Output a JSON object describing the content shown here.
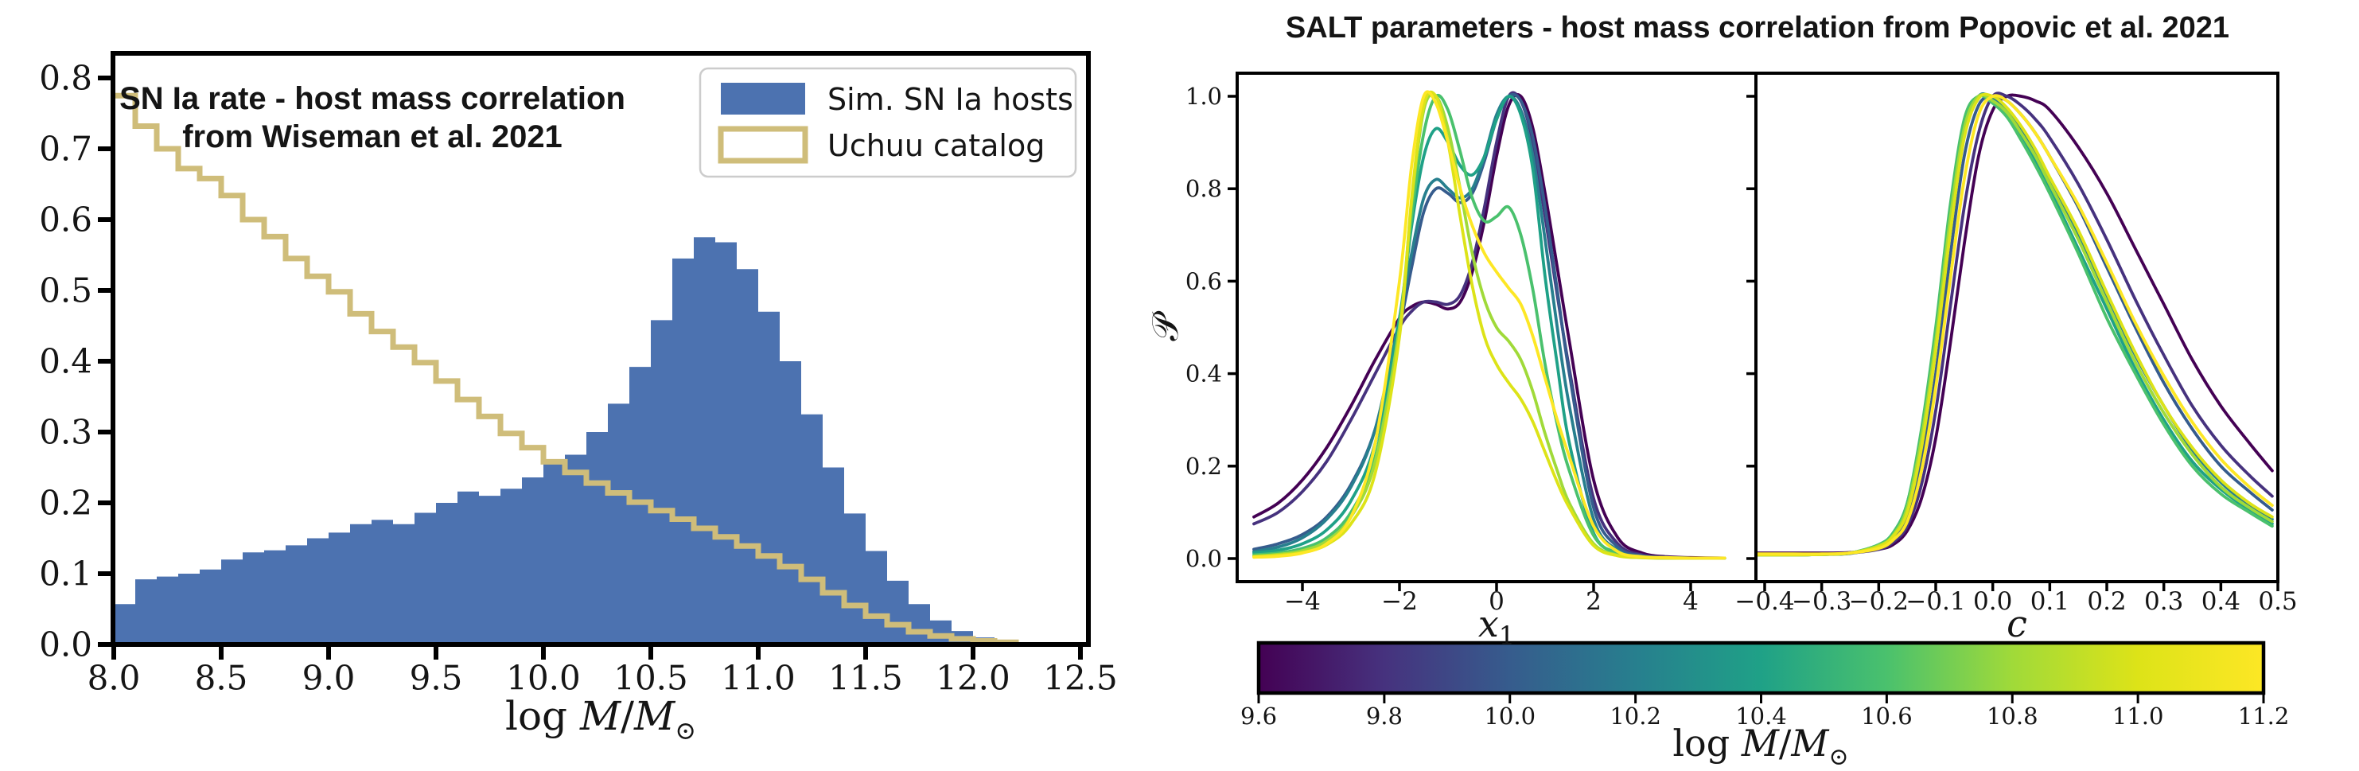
{
  "right_chart": {
    "title": "SALT parameters - host mass correlation from Popovic et al. 2021",
    "ylabel": "𝒫",
    "yticks": [
      0.0,
      0.2,
      0.4,
      0.6,
      0.8,
      1.0
    ],
    "ytick_labels": [
      "0.0",
      "0.2",
      "0.4",
      "0.6",
      "0.8",
      "1.0"
    ],
    "colorbar": {
      "min": 9.6,
      "max": 11.2,
      "ticks": [
        9.6,
        9.8,
        10.0,
        10.2,
        10.4,
        10.6,
        10.8,
        11.0,
        11.2
      ],
      "tick_labels": [
        "9.6",
        "9.8",
        "10.0",
        "10.2",
        "10.4",
        "10.6",
        "10.8",
        "11.0",
        "11.2"
      ],
      "label_prefix": "log",
      "label_m1": "M",
      "label_slash": "/",
      "label_m2": "M",
      "label_sun": "⊙",
      "stops": [
        "#440154",
        "#46327e",
        "#365c8d",
        "#277f8e",
        "#1fa187",
        "#4ac16d",
        "#a0da39",
        "#dde318",
        "#fde725"
      ]
    }
  },
  "chart_data": [
    {
      "id": "sn_rate_host_mass_hist",
      "type": "bar",
      "title_line1": "SN Ia rate - host mass correlation",
      "title_line2": "from Wiseman et al. 2021",
      "xlabel_prefix": "log",
      "xlabel_m1": "M",
      "xlabel_slash": "/",
      "xlabel_m2": "M",
      "xlabel_sun": "⊙",
      "xlim": [
        7.99,
        12.54
      ],
      "ylim": [
        0.0,
        0.83
      ],
      "bin_start": 8.0,
      "bin_width": 0.1,
      "xticks": [
        8.0,
        8.5,
        9.0,
        9.5,
        10.0,
        10.5,
        11.0,
        11.5,
        12.0,
        12.5
      ],
      "xtick_labels": [
        "8.0",
        "8.5",
        "9.0",
        "9.5",
        "10.0",
        "10.5",
        "11.0",
        "11.5",
        "12.0",
        "12.5"
      ],
      "yticks": [
        0.0,
        0.1,
        0.2,
        0.3,
        0.4,
        0.5,
        0.6,
        0.7,
        0.8
      ],
      "ytick_labels": [
        "0.0",
        "0.1",
        "0.2",
        "0.3",
        "0.4",
        "0.5",
        "0.6",
        "0.7",
        "0.8"
      ],
      "series": [
        {
          "name": "Sim. SN Ia hosts",
          "style": "filled",
          "color": "#4C72B0",
          "values": [
            0.057,
            0.092,
            0.096,
            0.1,
            0.106,
            0.12,
            0.13,
            0.133,
            0.14,
            0.15,
            0.158,
            0.17,
            0.176,
            0.17,
            0.186,
            0.2,
            0.216,
            0.21,
            0.22,
            0.236,
            0.26,
            0.268,
            0.3,
            0.34,
            0.392,
            0.458,
            0.545,
            0.575,
            0.568,
            0.53,
            0.47,
            0.4,
            0.325,
            0.25,
            0.185,
            0.132,
            0.09,
            0.057,
            0.034,
            0.019,
            0.01,
            0.005
          ]
        },
        {
          "name": "Uchuu catalog",
          "style": "step",
          "color": "#CFBD7A",
          "values": [
            0.775,
            0.732,
            0.7,
            0.672,
            0.658,
            0.634,
            0.6,
            0.576,
            0.545,
            0.52,
            0.498,
            0.467,
            0.442,
            0.42,
            0.398,
            0.372,
            0.346,
            0.322,
            0.298,
            0.278,
            0.258,
            0.243,
            0.228,
            0.214,
            0.201,
            0.189,
            0.177,
            0.164,
            0.152,
            0.139,
            0.125,
            0.11,
            0.092,
            0.073,
            0.055,
            0.04,
            0.028,
            0.018,
            0.012,
            0.008,
            0.005,
            0.003
          ]
        }
      ]
    },
    {
      "id": "salt_x1_kde",
      "type": "line",
      "xlabel_base": "x",
      "xlabel_sub": "1",
      "xlim": [
        -5.35,
        5.35
      ],
      "ylim": [
        -0.05,
        1.05
      ],
      "xticks": [
        -4,
        -2,
        0,
        2,
        4
      ],
      "xtick_labels": [
        "−4",
        "−2",
        "0",
        "2",
        "4"
      ],
      "x": [
        -5,
        -4.5,
        -4,
        -3.5,
        -3,
        -2.5,
        -2,
        -1.75,
        -1.5,
        -1.25,
        -1,
        -0.75,
        -0.5,
        -0.25,
        0,
        0.25,
        0.5,
        0.75,
        1,
        1.25,
        1.5,
        2,
        2.5,
        3,
        3.5,
        4,
        4.7
      ],
      "series": [
        {
          "mass": 9.6,
          "color": "#440154",
          "y": [
            0.09,
            0.12,
            0.17,
            0.24,
            0.33,
            0.43,
            0.52,
            0.545,
            0.555,
            0.55,
            0.54,
            0.555,
            0.62,
            0.73,
            0.87,
            0.98,
            1.0,
            0.93,
            0.79,
            0.63,
            0.47,
            0.17,
            0.045,
            0.012,
            0.004,
            0.002,
            0.001
          ]
        },
        {
          "mass": 9.8,
          "color": "#46327e",
          "y": [
            0.075,
            0.1,
            0.145,
            0.21,
            0.3,
            0.4,
            0.5,
            0.535,
            0.555,
            0.555,
            0.55,
            0.57,
            0.64,
            0.76,
            0.9,
            1.0,
            0.99,
            0.9,
            0.74,
            0.57,
            0.41,
            0.13,
            0.032,
            0.008,
            0.003,
            0.001,
            0.001
          ]
        },
        {
          "mass": 10.0,
          "color": "#365c8d",
          "y": [
            0.02,
            0.032,
            0.052,
            0.09,
            0.16,
            0.28,
            0.5,
            0.63,
            0.75,
            0.8,
            0.79,
            0.77,
            0.79,
            0.86,
            0.95,
            1.0,
            0.99,
            0.91,
            0.76,
            0.58,
            0.4,
            0.11,
            0.025,
            0.006,
            0.002,
            0.001,
            0.001
          ]
        },
        {
          "mass": 10.2,
          "color": "#277f8e",
          "y": [
            0.015,
            0.025,
            0.045,
            0.085,
            0.155,
            0.28,
            0.52,
            0.66,
            0.78,
            0.82,
            0.8,
            0.78,
            0.8,
            0.87,
            0.96,
            1.0,
            0.97,
            0.87,
            0.69,
            0.5,
            0.33,
            0.085,
            0.018,
            0.004,
            0.002,
            0.001,
            0.001
          ]
        },
        {
          "mass": 10.4,
          "color": "#1fa187",
          "y": [
            0.012,
            0.018,
            0.032,
            0.062,
            0.125,
            0.25,
            0.52,
            0.72,
            0.87,
            0.93,
            0.9,
            0.85,
            0.83,
            0.87,
            0.95,
            1.0,
            0.96,
            0.84,
            0.61,
            0.42,
            0.25,
            0.055,
            0.012,
            0.003,
            0.001,
            0.001,
            0.001
          ]
        },
        {
          "mass": 10.6,
          "color": "#4ac16d",
          "y": [
            0.008,
            0.012,
            0.022,
            0.045,
            0.1,
            0.22,
            0.5,
            0.74,
            0.92,
            1.0,
            0.97,
            0.88,
            0.78,
            0.73,
            0.74,
            0.76,
            0.7,
            0.58,
            0.42,
            0.29,
            0.19,
            0.05,
            0.01,
            0.003,
            0.001,
            0.001,
            0.001
          ]
        },
        {
          "mass": 10.8,
          "color": "#a0da39",
          "y": [
            0.005,
            0.009,
            0.017,
            0.038,
            0.09,
            0.21,
            0.5,
            0.77,
            0.97,
            1.0,
            0.93,
            0.8,
            0.66,
            0.56,
            0.5,
            0.47,
            0.43,
            0.36,
            0.27,
            0.19,
            0.12,
            0.032,
            0.007,
            0.002,
            0.001,
            0.001,
            0.001
          ]
        },
        {
          "mass": 11.0,
          "color": "#dde318",
          "y": [
            0.004,
            0.007,
            0.013,
            0.03,
            0.075,
            0.185,
            0.48,
            0.78,
            0.98,
            1.0,
            0.9,
            0.74,
            0.59,
            0.48,
            0.42,
            0.38,
            0.345,
            0.295,
            0.23,
            0.165,
            0.11,
            0.028,
            0.006,
            0.002,
            0.001,
            0.001,
            0.001
          ]
        },
        {
          "mass": 11.2,
          "color": "#fde725",
          "y": [
            0.003,
            0.005,
            0.012,
            0.032,
            0.09,
            0.25,
            0.6,
            0.85,
            1.0,
            0.985,
            0.9,
            0.8,
            0.72,
            0.66,
            0.62,
            0.585,
            0.55,
            0.48,
            0.39,
            0.3,
            0.22,
            0.07,
            0.015,
            0.004,
            0.002,
            0.001,
            0.001
          ]
        }
      ]
    },
    {
      "id": "salt_c_kde",
      "type": "line",
      "xlabel": "c",
      "xlim": [
        -0.415,
        0.5
      ],
      "ylim": [
        -0.05,
        1.05
      ],
      "xticks": [
        -0.4,
        -0.3,
        -0.2,
        -0.1,
        0.0,
        0.1,
        0.2,
        0.3,
        0.4,
        0.5
      ],
      "xtick_labels": [
        "−0.4",
        "−0.3",
        "−0.2",
        "−0.1",
        "0.0",
        "0.1",
        "0.2",
        "0.3",
        "0.4",
        "0.5"
      ],
      "x": [
        -0.415,
        -0.35,
        -0.3,
        -0.25,
        -0.2,
        -0.175,
        -0.15,
        -0.125,
        -0.1,
        -0.075,
        -0.05,
        -0.025,
        0,
        0.025,
        0.05,
        0.075,
        0.1,
        0.15,
        0.2,
        0.25,
        0.3,
        0.35,
        0.4,
        0.45,
        0.49
      ],
      "series": [
        {
          "mass": 9.6,
          "color": "#440154",
          "y": [
            0.012,
            0.012,
            0.012,
            0.013,
            0.02,
            0.03,
            0.06,
            0.13,
            0.26,
            0.46,
            0.68,
            0.87,
            0.97,
            1.0,
            1.0,
            0.99,
            0.97,
            0.89,
            0.79,
            0.67,
            0.55,
            0.43,
            0.33,
            0.25,
            0.19
          ]
        },
        {
          "mass": 9.8,
          "color": "#46327e",
          "y": [
            0.01,
            0.01,
            0.01,
            0.012,
            0.02,
            0.035,
            0.07,
            0.16,
            0.32,
            0.54,
            0.76,
            0.92,
            1.0,
            1.0,
            0.98,
            0.95,
            0.91,
            0.81,
            0.69,
            0.56,
            0.44,
            0.33,
            0.245,
            0.18,
            0.135
          ]
        },
        {
          "mass": 10.0,
          "color": "#365c8d",
          "y": [
            0.008,
            0.008,
            0.009,
            0.011,
            0.025,
            0.045,
            0.09,
            0.21,
            0.4,
            0.65,
            0.87,
            0.98,
            1.0,
            0.99,
            0.96,
            0.92,
            0.87,
            0.76,
            0.63,
            0.5,
            0.38,
            0.28,
            0.2,
            0.145,
            0.105
          ]
        },
        {
          "mass": 10.2,
          "color": "#277f8e",
          "y": [
            0.008,
            0.008,
            0.009,
            0.012,
            0.028,
            0.05,
            0.11,
            0.25,
            0.46,
            0.72,
            0.92,
            1.0,
            0.995,
            0.97,
            0.93,
            0.88,
            0.82,
            0.7,
            0.57,
            0.44,
            0.33,
            0.235,
            0.165,
            0.115,
            0.085
          ]
        },
        {
          "mass": 10.4,
          "color": "#1fa187",
          "y": [
            0.008,
            0.008,
            0.009,
            0.012,
            0.03,
            0.055,
            0.12,
            0.27,
            0.49,
            0.75,
            0.94,
            1.0,
            0.99,
            0.96,
            0.91,
            0.86,
            0.8,
            0.67,
            0.54,
            0.41,
            0.3,
            0.21,
            0.15,
            0.105,
            0.075
          ]
        },
        {
          "mass": 10.6,
          "color": "#4ac16d",
          "y": [
            0.008,
            0.008,
            0.009,
            0.012,
            0.03,
            0.055,
            0.12,
            0.28,
            0.5,
            0.76,
            0.95,
            1.0,
            0.985,
            0.955,
            0.905,
            0.85,
            0.79,
            0.66,
            0.52,
            0.4,
            0.29,
            0.2,
            0.14,
            0.1,
            0.07
          ]
        },
        {
          "mass": 10.8,
          "color": "#a0da39",
          "y": [
            0.008,
            0.008,
            0.009,
            0.012,
            0.028,
            0.05,
            0.11,
            0.26,
            0.47,
            0.73,
            0.93,
            1.0,
            0.99,
            0.965,
            0.92,
            0.87,
            0.81,
            0.69,
            0.555,
            0.425,
            0.315,
            0.225,
            0.155,
            0.11,
            0.08
          ]
        },
        {
          "mass": 11.0,
          "color": "#dde318",
          "y": [
            0.008,
            0.008,
            0.009,
            0.012,
            0.026,
            0.048,
            0.1,
            0.24,
            0.45,
            0.7,
            0.91,
            0.995,
            1.0,
            0.975,
            0.935,
            0.885,
            0.825,
            0.71,
            0.575,
            0.445,
            0.33,
            0.24,
            0.17,
            0.12,
            0.09
          ]
        },
        {
          "mass": 11.2,
          "color": "#fde725",
          "y": [
            0.01,
            0.01,
            0.01,
            0.012,
            0.022,
            0.04,
            0.08,
            0.19,
            0.37,
            0.6,
            0.82,
            0.96,
            1.0,
            0.99,
            0.96,
            0.92,
            0.87,
            0.765,
            0.64,
            0.51,
            0.395,
            0.295,
            0.215,
            0.155,
            0.115
          ]
        }
      ]
    }
  ]
}
